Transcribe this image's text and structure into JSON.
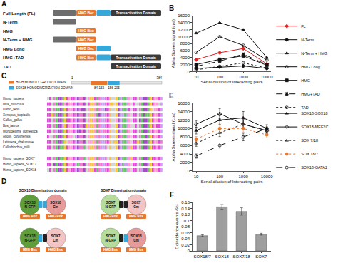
{
  "figure": {
    "A": {
      "label": "A",
      "length": 384,
      "rows": [
        {
          "name": "Full Length (FL)",
          "segments": [
            {
              "start": 1,
              "end": 83,
              "color": "#6d6d6d"
            },
            {
              "start": 84,
              "end": 153,
              "color": "#e8772e",
              "label": "HMG Box"
            },
            {
              "start": 156,
              "end": 205,
              "color": "#35a7d9"
            },
            {
              "start": 206,
              "end": 384,
              "color": "#3a3a3a",
              "label": "Transactivation Domain"
            }
          ]
        },
        {
          "name": "N-Term",
          "segments": [
            {
              "start": 1,
              "end": 83,
              "color": "#6d6d6d"
            }
          ]
        },
        {
          "name": "HMG",
          "segments": [
            {
              "start": 84,
              "end": 153,
              "color": "#e8772e",
              "label": "HMG Box"
            }
          ]
        },
        {
          "name": "N-Term + HMG",
          "segments": [
            {
              "start": 1,
              "end": 83,
              "color": "#6d6d6d"
            },
            {
              "start": 84,
              "end": 153,
              "color": "#e8772e",
              "label": "HMG Box"
            }
          ]
        },
        {
          "name": "HMG Long",
          "segments": [
            {
              "start": 84,
              "end": 153,
              "color": "#e8772e",
              "label": "HMG Box"
            },
            {
              "start": 156,
              "end": 205,
              "color": "#35a7d9"
            }
          ]
        },
        {
          "name": "HMG+TAD",
          "segments": [
            {
              "start": 84,
              "end": 153,
              "color": "#e8772e",
              "label": "HMG Box"
            },
            {
              "start": 156,
              "end": 205,
              "color": "#35a7d9"
            },
            {
              "start": 206,
              "end": 384,
              "color": "#3a3a3a",
              "label": "Transactivation Domain"
            }
          ]
        },
        {
          "name": "TAD",
          "segments": [
            {
              "start": 206,
              "end": 384,
              "color": "#3a3a3a",
              "label": "Transactivation Domain"
            }
          ]
        }
      ]
    },
    "C": {
      "label": "C",
      "legend": [
        {
          "text": "HIGH MOBILITY GROUP DOMAIN",
          "color": "#e8772e"
        },
        {
          "text": "SOX18 HOMODIMERIZATION DOMAIN",
          "color": "#35a7d9"
        }
      ],
      "ruler": {
        "start": 1,
        "end": 384
      },
      "domains": [
        {
          "start": 84,
          "end": 153,
          "label": "84-153",
          "color": "#e8772e"
        },
        {
          "start": 156,
          "end": 205,
          "label": "156-205",
          "color": "#35a7d9"
        }
      ],
      "species": [
        "Homo_sapiens",
        "Mus_musculus",
        "Danio_rerio",
        "Xenopus_tropicalis",
        "Gallus_gallus",
        "Bos_taurus",
        "Monodelphis_domestica",
        "Anolis_carolinensis",
        "Latimeria_chalumnae",
        "Callorhinchus_milii"
      ],
      "paralogs": [
        "Homo_sapiens_SOX7",
        "Homo_sapiens_SOX17",
        "Homo_sapiens_SOX18"
      ]
    },
    "D": {
      "label": "D",
      "box_label": "HMG Box",
      "cells": [
        {
          "title": "SOX18 Dimerisation domain",
          "left": {
            "label": "SOX18 N-GFP",
            "color": "#5f9e3a",
            "domain_color": "#35a7d9"
          },
          "right": {
            "label": "SOX18 Cm",
            "color": "#e79a9a",
            "domain_color": "#35a7d9"
          }
        },
        {
          "title": "SOX7 Dimerisation domain",
          "left": {
            "label": "SOX7 N-GFP",
            "color": "#b5dc9c",
            "domain_color": "#222222"
          },
          "right": {
            "label": "SOX7 Cm",
            "color": "#f2c4c4",
            "domain_color": "#222222"
          }
        },
        {
          "left": {
            "label": "SOX18 N-GFP",
            "color": "#5f9e3a",
            "domain_color": "#35a7d9"
          },
          "right": {
            "label": "SOX7 Cm",
            "color": "#f2c4c4",
            "domain_color": "#222222"
          }
        },
        {
          "left": {
            "label": "SOX7 N-GFP",
            "color": "#b5dc9c",
            "domain_color": "#222222"
          },
          "right": {
            "label": "SOX18 Cm",
            "color": "#e79a9a",
            "domain_color": "#35a7d9"
          }
        }
      ]
    }
  },
  "chart_data": [
    {
      "label": "B",
      "type": "line",
      "log": "x",
      "legend": "right",
      "x_title": "Serial dilution of Interacting pairs",
      "y_title": "Alpha Screen signal (cps)",
      "x": [
        10,
        100,
        1000,
        10000
      ],
      "xlim": [
        7,
        15000
      ],
      "xticks": [
        10,
        100,
        1000,
        10000
      ],
      "ylim": [
        0,
        16000
      ],
      "yticks": [
        0,
        2000,
        4000,
        6000,
        8000,
        10000,
        12000,
        14000,
        16000
      ],
      "series": [
        {
          "name": "FL",
          "color": "#e02020",
          "marker": "diamond",
          "line_style": "solid",
          "values": [
            3400,
            5400,
            6600,
            2200
          ]
        },
        {
          "name": "N-Term",
          "color": "#111111",
          "marker": "diamond",
          "line_style": "solid",
          "values": [
            900,
            1300,
            1600,
            900
          ]
        },
        {
          "name": "N-Term + HMG",
          "color": "#111111",
          "marker": "triangle-up",
          "line_style": "solid",
          "values": [
            11000,
            14000,
            12000,
            4000
          ]
        },
        {
          "name": "HMG Long",
          "color": "#111111",
          "marker": "circle-open",
          "line_style": "solid",
          "values": [
            5500,
            10000,
            7500,
            3300
          ]
        },
        {
          "name": "HMG",
          "color": "#111111",
          "marker": "square",
          "line_style": "solid",
          "values": [
            2000,
            3500,
            4500,
            1800
          ]
        },
        {
          "name": "HMG+TAD",
          "color": "#111111",
          "marker": "x",
          "line_style": "dash",
          "values": [
            1500,
            3000,
            5000,
            2000
          ]
        },
        {
          "name": "TAD",
          "color": "#111111",
          "marker": "circle-open",
          "line_style": "dot",
          "values": [
            500,
            1500,
            2500,
            1000
          ]
        }
      ]
    },
    {
      "label": "E",
      "type": "line",
      "log": "x",
      "legend": "right",
      "x_title": "Serial dilution of Interacting pairs",
      "y_title": "Alpha Screen signal (cps)",
      "x": [
        10,
        100,
        1000,
        10000
      ],
      "xlim": [
        7,
        15000
      ],
      "xticks": [
        10,
        100,
        1000,
        10000
      ],
      "ylim": [
        0,
        16000
      ],
      "yticks": [
        0,
        2000,
        4000,
        6000,
        8000,
        10000,
        12000,
        14000,
        16000
      ],
      "series": [
        {
          "name": "SOX18-SOX18",
          "color": "#111111",
          "marker": "triangle-up",
          "line_style": "solid",
          "values": [
            9500,
            12000,
            12500,
            10000
          ],
          "error": [
            800,
            1000,
            1500,
            800
          ]
        },
        {
          "name": "SOX18-MEF2C",
          "color": "#111111",
          "marker": "diamond-open",
          "line_style": "solid",
          "values": [
            11000,
            13500,
            11000,
            9500
          ],
          "error": [
            900,
            1200,
            1000,
            700
          ]
        },
        {
          "name": "SOX 7/18",
          "color": "#111111",
          "marker": "triangle-up-open",
          "line_style": "dot",
          "values": [
            6500,
            9000,
            11000,
            9500
          ],
          "error": [
            700,
            900,
            1100,
            900
          ]
        },
        {
          "name": "SOX 18/7",
          "color": "#e8772e",
          "marker": "circle",
          "line_style": "dot",
          "values": [
            7500,
            10000,
            10000,
            8500
          ],
          "error": [
            600,
            900,
            900,
            700
          ]
        },
        {
          "name": "SOX18-GATA2",
          "color": "#111111",
          "marker": "circle-open",
          "line_style": "dash",
          "values": [
            3500,
            6000,
            8000,
            10000
          ],
          "error": [
            500,
            600,
            900,
            900
          ]
        }
      ]
    },
    {
      "label": "F",
      "type": "bar",
      "y_title": "Coincidence events (%)",
      "categories": [
        "SOX18/7",
        "SOX18",
        "SOX7/18",
        "SOX7"
      ],
      "values": [
        0.05,
        0.145,
        0.13,
        0.055
      ],
      "error": [
        0.003,
        0.008,
        0.012,
        0.003
      ],
      "color": "#9e9e9e",
      "ylim": [
        0,
        0.16
      ],
      "yticks": [
        0,
        0.02,
        0.04,
        0.06,
        0.08,
        0.1,
        0.12,
        0.14,
        0.16
      ]
    }
  ]
}
